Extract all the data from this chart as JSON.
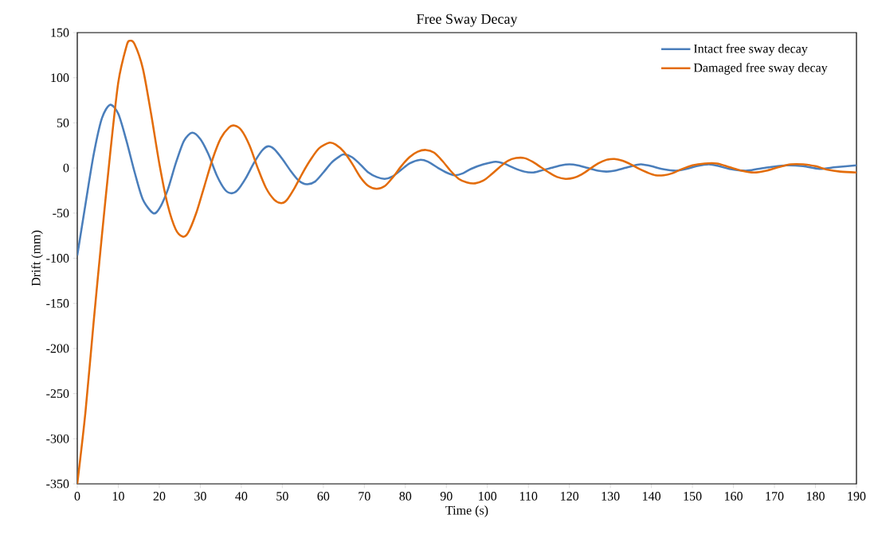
{
  "chart_data": {
    "type": "line",
    "title": "Free Sway Decay",
    "xlabel": "Time (s)",
    "ylabel": "Drift (mm)",
    "xlim": [
      0,
      190
    ],
    "xticks": [
      0,
      10,
      20,
      30,
      40,
      50,
      60,
      70,
      80,
      90,
      100,
      110,
      120,
      130,
      140,
      150,
      160,
      170,
      180,
      190
    ],
    "ylim": [
      -350,
      150
    ],
    "yticks": [
      -350,
      -300,
      -250,
      -200,
      -150,
      -100,
      -50,
      0,
      50,
      100,
      150
    ],
    "grid": false,
    "legend": "top right",
    "marker": "none",
    "line_style": "solid",
    "series": [
      {
        "name": "Intact free sway decay",
        "color": "#4a7ebb",
        "x": [
          0,
          2,
          4,
          6,
          8,
          10,
          12,
          14,
          16,
          18.5,
          20,
          22,
          24,
          26,
          28,
          30,
          32,
          34,
          36,
          37.5,
          39,
          41,
          43,
          45,
          46.5,
          48,
          50,
          52,
          54,
          56,
          58,
          60,
          62,
          64,
          65,
          67,
          69,
          71,
          73,
          75,
          77,
          79,
          81,
          83.5,
          85.5,
          88,
          90,
          92,
          94,
          96,
          99,
          102,
          104,
          106.5,
          109,
          111,
          113,
          115.5,
          118,
          120,
          122,
          124.5,
          127,
          129,
          131,
          133.5,
          136,
          137.5,
          140,
          142.5,
          146,
          148.5,
          151,
          154,
          156.5,
          159,
          163,
          166,
          169,
          173,
          177,
          181,
          185,
          190
        ],
        "values": [
          -97,
          -40,
          15,
          55,
          70,
          60,
          30,
          -5,
          -35,
          -50,
          -45,
          -25,
          5,
          30,
          39,
          32,
          15,
          -8,
          -24,
          -28,
          -25,
          -12,
          5,
          19,
          24,
          21,
          10,
          -3,
          -14,
          -18,
          -15,
          -5,
          6,
          13,
          15,
          12,
          4,
          -5,
          -10,
          -12,
          -9,
          -2,
          5,
          9,
          7,
          0,
          -5,
          -8,
          -6,
          -1,
          4,
          7,
          5,
          0,
          -4,
          -5,
          -3,
          0,
          3,
          4,
          3,
          0,
          -3,
          -4,
          -3,
          0,
          3,
          4,
          2,
          -1,
          -3,
          -1,
          2,
          4,
          2,
          -1,
          -3,
          -1,
          1,
          3,
          2,
          -1,
          1,
          3
        ]
      },
      {
        "name": "Damaged free sway decay",
        "color": "#e36c09",
        "x": [
          0,
          2,
          4,
          6,
          8,
          10,
          12,
          12.8,
          14,
          16,
          18,
          20,
          22,
          24,
          25.7,
          27,
          29,
          31,
          33,
          35,
          37,
          38.3,
          40,
          42,
          44,
          46,
          48,
          49.7,
          51,
          53,
          55,
          57,
          59,
          61.5,
          63,
          65,
          67,
          69,
          71,
          73,
          75,
          77,
          79,
          81,
          83,
          85,
          87,
          89,
          91,
          93,
          95,
          97,
          99,
          101,
          103,
          105,
          107,
          109,
          111,
          113,
          115,
          117,
          119,
          121,
          123,
          125,
          127,
          129,
          131,
          133,
          135,
          137,
          139,
          141,
          143,
          145,
          147,
          150,
          153,
          156,
          159,
          162,
          165,
          168,
          171,
          174,
          177,
          180,
          183,
          186,
          190
        ],
        "values": [
          -350,
          -270,
          -170,
          -75,
          15,
          95,
          135,
          141,
          137,
          110,
          60,
          5,
          -40,
          -68,
          -76,
          -72,
          -50,
          -20,
          10,
          33,
          45,
          47,
          42,
          25,
          0,
          -22,
          -35,
          -39,
          -36,
          -22,
          -5,
          10,
          22,
          28,
          26,
          18,
          5,
          -10,
          -20,
          -23,
          -20,
          -10,
          2,
          12,
          18,
          20,
          17,
          8,
          -3,
          -12,
          -16,
          -17,
          -14,
          -7,
          1,
          8,
          11,
          11,
          7,
          1,
          -5,
          -10,
          -12,
          -11,
          -7,
          -1,
          5,
          9,
          10,
          8,
          4,
          -1,
          -5,
          -8,
          -8,
          -6,
          -2,
          3,
          5,
          5,
          1,
          -3,
          -5,
          -3,
          1,
          4,
          4,
          2,
          -2,
          -4,
          -5
        ]
      }
    ]
  }
}
